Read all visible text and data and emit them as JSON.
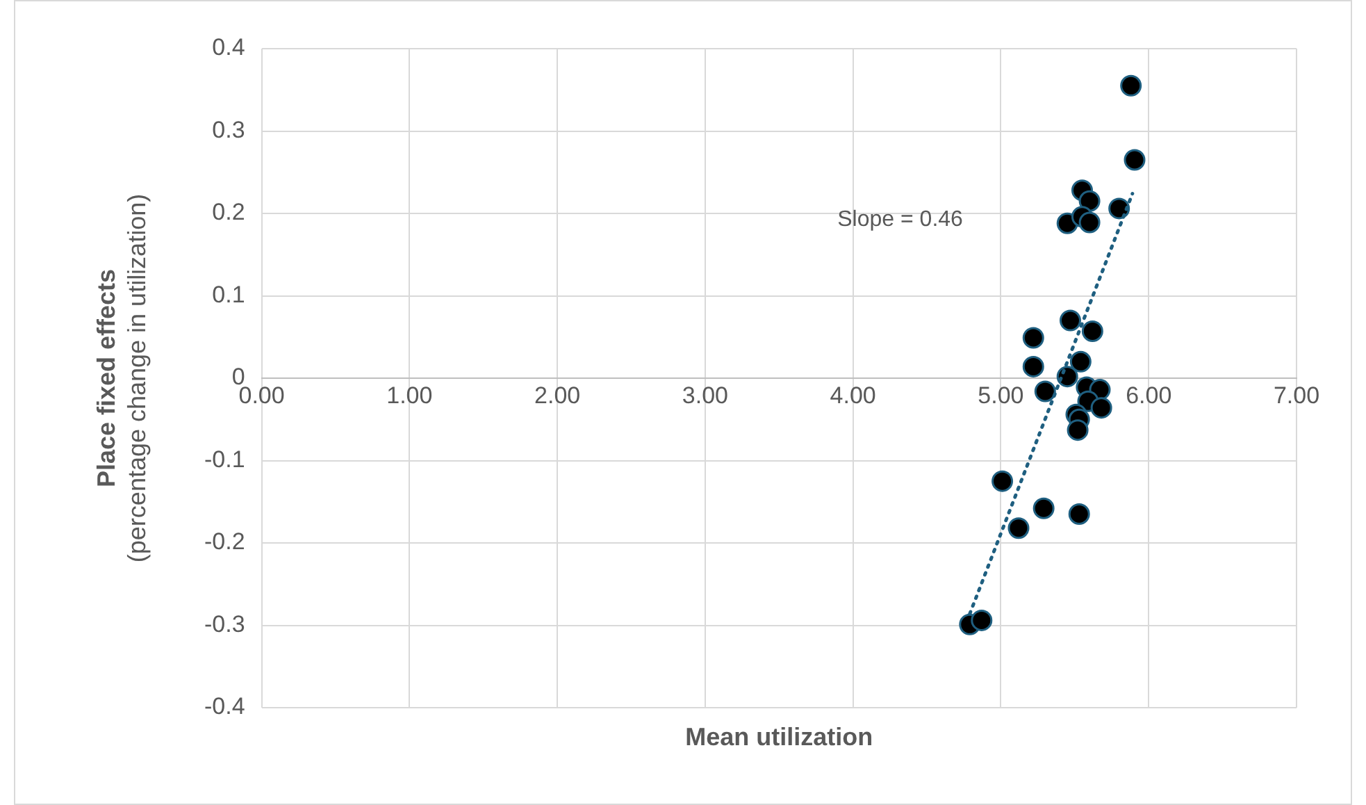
{
  "chart_data": {
    "type": "scatter",
    "xlabel": "Mean utilization",
    "ylabel": "Place fixed effects\n(percentage change in utilization)",
    "xlim": [
      0,
      7
    ],
    "xticks": [
      {
        "value": 0,
        "label": "0.00"
      },
      {
        "value": 1,
        "label": "1.00"
      },
      {
        "value": 2,
        "label": "2.00"
      },
      {
        "value": 3,
        "label": "3.00"
      },
      {
        "value": 4,
        "label": "4.00"
      },
      {
        "value": 5,
        "label": "5.00"
      },
      {
        "value": 6,
        "label": "6.00"
      },
      {
        "value": 7,
        "label": "7.00"
      }
    ],
    "ylim": [
      -0.4,
      0.4
    ],
    "yticks": [
      -0.4,
      -0.3,
      -0.2,
      -0.1,
      0,
      0.1,
      0.2,
      0.3,
      0.4
    ],
    "grid": true,
    "legend": false,
    "marker": "circle",
    "series": [
      {
        "color": "#000000",
        "x": [
          5.88,
          5.905,
          5.55,
          5.6,
          5.8,
          5.45,
          5.55,
          5.6,
          5.22,
          5.47,
          5.62,
          5.22,
          5.54,
          5.45,
          5.3,
          5.58,
          5.67,
          5.59,
          5.68,
          5.51,
          5.53,
          5.52,
          5.01,
          5.29,
          5.53,
          5.12,
          4.79,
          4.87
        ],
        "values": [
          0.355,
          0.265,
          0.228,
          0.215,
          0.206,
          0.188,
          0.196,
          0.189,
          0.049,
          0.07,
          0.057,
          0.014,
          0.02,
          0.002,
          -0.016,
          -0.011,
          -0.014,
          -0.028,
          -0.036,
          -0.044,
          -0.05,
          -0.063,
          -0.125,
          -0.158,
          -0.165,
          -0.182,
          -0.299,
          -0.294
        ]
      },
      {
        "type": "line",
        "color": "#1f5f80",
        "line_style": "dotted",
        "marker": "none",
        "x": [
          4.79,
          5.89
        ],
        "values": [
          -0.286,
          0.224
        ]
      }
    ],
    "annotations": [
      "Slope = 0.46"
    ]
  }
}
